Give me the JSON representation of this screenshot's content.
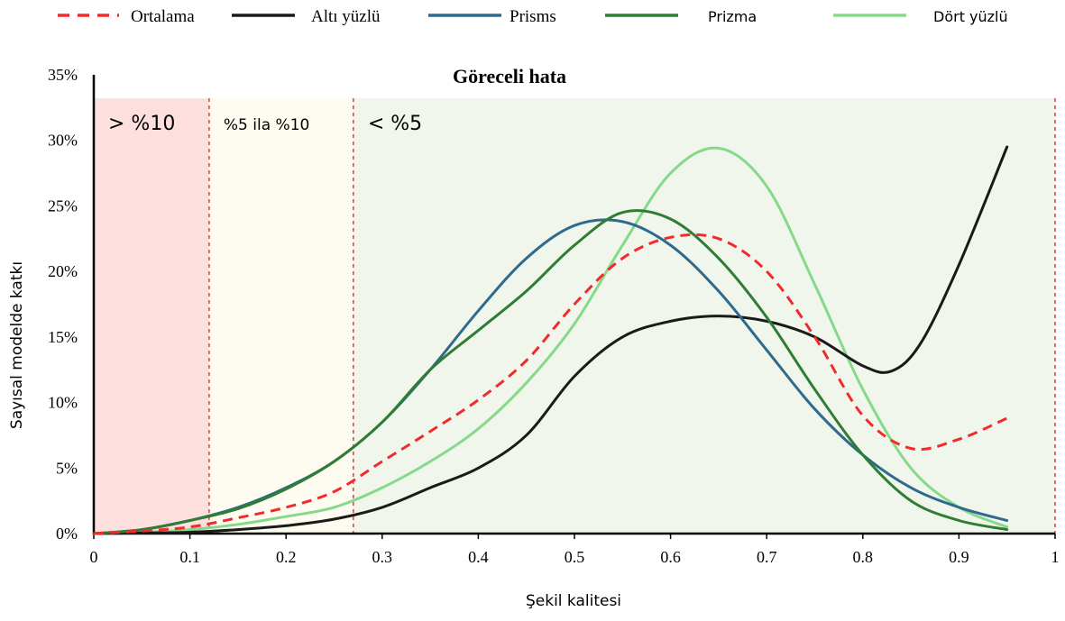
{
  "chart_data": {
    "type": "line",
    "title": "Göreceli hata",
    "xlabel": "Şekil kalitesi",
    "ylabel": "Sayısal modelde katkı",
    "xlim": [
      0,
      1
    ],
    "ylim": [
      0,
      35
    ],
    "x_ticks": [
      "0",
      "0.1",
      "0.2",
      "0.3",
      "0.4",
      "0.5",
      "0.6",
      "0.7",
      "0.8",
      "0.9",
      "1"
    ],
    "y_ticks": [
      "0%",
      "5%",
      "10%",
      "15%",
      "20%",
      "25%",
      "30%",
      "35%"
    ],
    "legend_position": "top",
    "grid": false,
    "regions": [
      {
        "label": "> %10",
        "x_start": 0,
        "x_end": 0.12,
        "color": "#fde0dd"
      },
      {
        "label": "%5 ila %10",
        "x_start": 0.12,
        "x_end": 0.27,
        "color": "#fefcf0"
      },
      {
        "label": "< %5",
        "x_start": 0.27,
        "x_end": 1.0,
        "color": "#f1f6ec"
      }
    ],
    "thresholds": [
      0.12,
      0.27,
      1.0
    ],
    "series": [
      {
        "name": "Ortalama",
        "color": "#ef2b2b",
        "dashed": true,
        "x": [
          0,
          0.05,
          0.1,
          0.15,
          0.2,
          0.25,
          0.3,
          0.35,
          0.4,
          0.45,
          0.5,
          0.55,
          0.6,
          0.65,
          0.7,
          0.75,
          0.8,
          0.85,
          0.9,
          0.95
        ],
        "y": [
          0,
          0.2,
          0.5,
          1.2,
          2.0,
          3.2,
          5.5,
          7.8,
          10.2,
          13.2,
          17.5,
          21.0,
          22.6,
          22.5,
          20.0,
          15.0,
          9.0,
          6.5,
          7.2,
          8.8
        ]
      },
      {
        "name": "Altı yüzlü",
        "color": "#1a1a1a",
        "dashed": false,
        "x": [
          0,
          0.05,
          0.1,
          0.15,
          0.2,
          0.25,
          0.3,
          0.35,
          0.4,
          0.45,
          0.5,
          0.55,
          0.6,
          0.65,
          0.7,
          0.75,
          0.8,
          0.83,
          0.86,
          0.9,
          0.95
        ],
        "y": [
          0,
          0.05,
          0.1,
          0.3,
          0.6,
          1.1,
          2.0,
          3.5,
          5.0,
          7.5,
          12.0,
          15.0,
          16.2,
          16.6,
          16.2,
          15.0,
          12.8,
          12.4,
          14.5,
          20.5,
          29.5
        ]
      },
      {
        "name": "Prisms",
        "color": "#2f6a8c",
        "dashed": false,
        "x": [
          0,
          0.05,
          0.1,
          0.15,
          0.2,
          0.25,
          0.3,
          0.35,
          0.4,
          0.45,
          0.5,
          0.55,
          0.6,
          0.65,
          0.7,
          0.75,
          0.8,
          0.85,
          0.9,
          0.95
        ],
        "y": [
          0,
          0.3,
          1.0,
          2.0,
          3.5,
          5.5,
          8.5,
          12.5,
          17.0,
          21.0,
          23.5,
          23.8,
          22.0,
          18.5,
          14.0,
          9.5,
          6.0,
          3.5,
          2.0,
          1.0
        ]
      },
      {
        "name": "Prizma",
        "color": "#2e7d32",
        "dashed": false,
        "x": [
          0,
          0.05,
          0.1,
          0.15,
          0.2,
          0.25,
          0.3,
          0.35,
          0.4,
          0.45,
          0.5,
          0.55,
          0.6,
          0.65,
          0.7,
          0.75,
          0.8,
          0.85,
          0.9,
          0.95
        ],
        "y": [
          0,
          0.3,
          1.0,
          1.9,
          3.4,
          5.5,
          8.5,
          12.5,
          15.5,
          18.5,
          22.0,
          24.5,
          24.0,
          21.0,
          16.5,
          11.0,
          6.0,
          2.5,
          1.0,
          0.3
        ]
      },
      {
        "name": "Dört yüzlü",
        "color": "#86d98a",
        "dashed": false,
        "x": [
          0,
          0.05,
          0.1,
          0.15,
          0.2,
          0.25,
          0.3,
          0.35,
          0.4,
          0.45,
          0.5,
          0.55,
          0.6,
          0.65,
          0.7,
          0.75,
          0.8,
          0.85,
          0.9,
          0.95
        ],
        "y": [
          0,
          0.1,
          0.3,
          0.7,
          1.3,
          2.0,
          3.5,
          5.5,
          8.0,
          11.5,
          16.0,
          22.0,
          27.5,
          29.4,
          26.5,
          19.0,
          11.0,
          5.0,
          2.0,
          0.5
        ]
      }
    ]
  }
}
